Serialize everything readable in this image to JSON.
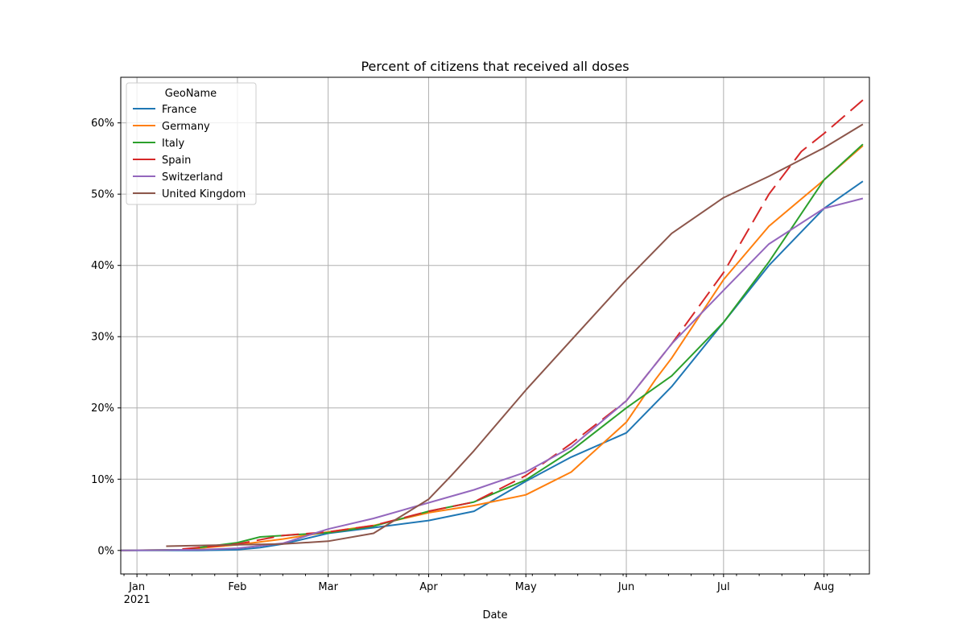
{
  "chart_data": {
    "type": "line",
    "title": "Percent of citizens that received all doses",
    "xlabel": "Date",
    "ylabel": "",
    "xlim": [
      "2020-12-27",
      "2021-08-15"
    ],
    "ylim": [
      -3.3,
      66.4
    ],
    "y_ticks": [
      0,
      10,
      20,
      30,
      40,
      50,
      60
    ],
    "y_tick_labels": [
      "0%",
      "10%",
      "20%",
      "30%",
      "40%",
      "50%",
      "60%"
    ],
    "x_ticks": [
      "2021-01-01",
      "2021-02-01",
      "2021-03-01",
      "2021-04-01",
      "2021-05-01",
      "2021-06-01",
      "2021-07-01",
      "2021-08-01"
    ],
    "x_tick_labels": [
      "Jan",
      "Feb",
      "Mar",
      "Apr",
      "May",
      "Jun",
      "Jul",
      "Aug"
    ],
    "x_tick_year_label": "2021",
    "grid": true,
    "legend": {
      "title": "GeoName",
      "placement": "top-left"
    },
    "series": [
      {
        "name": "France",
        "color": "#1f77b4",
        "style": "solid",
        "points": [
          [
            "2020-12-27",
            0
          ],
          [
            "2021-01-20",
            0
          ],
          [
            "2021-02-01",
            0.1
          ],
          [
            "2021-02-08",
            0.4
          ],
          [
            "2021-02-15",
            0.9
          ],
          [
            "2021-03-01",
            2.4
          ],
          [
            "2021-03-15",
            3.2
          ],
          [
            "2021-04-01",
            4.2
          ],
          [
            "2021-04-15",
            5.5
          ],
          [
            "2021-05-01",
            9.7
          ],
          [
            "2021-05-15",
            13.1
          ],
          [
            "2021-06-01",
            16.5
          ],
          [
            "2021-06-15",
            23
          ],
          [
            "2021-07-01",
            32
          ],
          [
            "2021-07-15",
            40
          ],
          [
            "2021-08-01",
            48
          ],
          [
            "2021-08-13",
            51.8
          ]
        ]
      },
      {
        "name": "Germany",
        "color": "#ff7f0e",
        "style": "solid",
        "points": [
          [
            "2020-12-27",
            0
          ],
          [
            "2021-01-15",
            0.1
          ],
          [
            "2021-02-01",
            0.8
          ],
          [
            "2021-02-15",
            1.6
          ],
          [
            "2021-03-01",
            2.6
          ],
          [
            "2021-03-15",
            3.5
          ],
          [
            "2021-04-01",
            5.3
          ],
          [
            "2021-04-15",
            6.3
          ],
          [
            "2021-05-01",
            7.8
          ],
          [
            "2021-05-15",
            11
          ],
          [
            "2021-06-01",
            18
          ],
          [
            "2021-06-10",
            24
          ],
          [
            "2021-06-15",
            27
          ],
          [
            "2021-07-01",
            38
          ],
          [
            "2021-07-15",
            45.5
          ],
          [
            "2021-08-01",
            52
          ],
          [
            "2021-08-13",
            56.8
          ]
        ]
      },
      {
        "name": "Italy",
        "color": "#2ca02c",
        "style": "solid",
        "points": [
          [
            "2020-12-27",
            0
          ],
          [
            "2021-01-15",
            0.1
          ],
          [
            "2021-02-01",
            1.1
          ],
          [
            "2021-02-08",
            1.9
          ],
          [
            "2021-02-15",
            2.1
          ],
          [
            "2021-03-01",
            2.5
          ],
          [
            "2021-03-15",
            3.4
          ],
          [
            "2021-04-01",
            5.5
          ],
          [
            "2021-04-15",
            6.8
          ],
          [
            "2021-05-01",
            9.9
          ],
          [
            "2021-05-15",
            14
          ],
          [
            "2021-06-01",
            20
          ],
          [
            "2021-06-15",
            24.5
          ],
          [
            "2021-07-01",
            32
          ],
          [
            "2021-07-15",
            40.5
          ],
          [
            "2021-08-01",
            52
          ],
          [
            "2021-08-13",
            57
          ]
        ]
      },
      {
        "name": "Spain",
        "color": "#d62728",
        "style": "dashed",
        "points": [
          [
            "2021-01-15",
            0.2
          ],
          [
            "2021-02-01",
            0.9
          ],
          [
            "2021-02-15",
            2.1
          ],
          [
            "2021-03-01",
            2.6
          ],
          [
            "2021-03-15",
            3.5
          ],
          [
            "2021-04-01",
            5.5
          ],
          [
            "2021-04-15",
            6.8
          ],
          [
            "2021-05-01",
            10.5
          ],
          [
            "2021-05-15",
            15
          ],
          [
            "2021-06-01",
            21
          ],
          [
            "2021-06-15",
            29
          ],
          [
            "2021-07-01",
            39
          ],
          [
            "2021-07-15",
            50
          ],
          [
            "2021-07-25",
            56
          ],
          [
            "2021-08-01",
            58.5
          ],
          [
            "2021-08-13",
            63.2
          ]
        ]
      },
      {
        "name": "Switzerland",
        "color": "#9467bd",
        "style": "solid",
        "points": [
          [
            "2020-12-27",
            0
          ],
          [
            "2021-01-20",
            0.1
          ],
          [
            "2021-02-01",
            0.3
          ],
          [
            "2021-02-15",
            1.0
          ],
          [
            "2021-03-01",
            3
          ],
          [
            "2021-03-15",
            4.5
          ],
          [
            "2021-04-01",
            6.7
          ],
          [
            "2021-04-15",
            8.5
          ],
          [
            "2021-05-01",
            11
          ],
          [
            "2021-05-15",
            14.5
          ],
          [
            "2021-06-01",
            21
          ],
          [
            "2021-06-15",
            29
          ],
          [
            "2021-07-01",
            36.5
          ],
          [
            "2021-07-15",
            43
          ],
          [
            "2021-08-01",
            48
          ],
          [
            "2021-08-13",
            49.4
          ]
        ]
      },
      {
        "name": "United Kingdom",
        "color": "#8c564b",
        "style": "solid",
        "points": [
          [
            "2021-01-10",
            0.6
          ],
          [
            "2021-02-01",
            0.8
          ],
          [
            "2021-02-15",
            0.9
          ],
          [
            "2021-03-01",
            1.3
          ],
          [
            "2021-03-15",
            2.4
          ],
          [
            "2021-04-01",
            7.2
          ],
          [
            "2021-04-08",
            10.5
          ],
          [
            "2021-04-15",
            14
          ],
          [
            "2021-05-01",
            22.5
          ],
          [
            "2021-05-15",
            29.5
          ],
          [
            "2021-06-01",
            38
          ],
          [
            "2021-06-15",
            44.5
          ],
          [
            "2021-07-01",
            49.5
          ],
          [
            "2021-07-15",
            52.5
          ],
          [
            "2021-08-01",
            56.5
          ],
          [
            "2021-08-13",
            59.8
          ]
        ]
      }
    ]
  }
}
